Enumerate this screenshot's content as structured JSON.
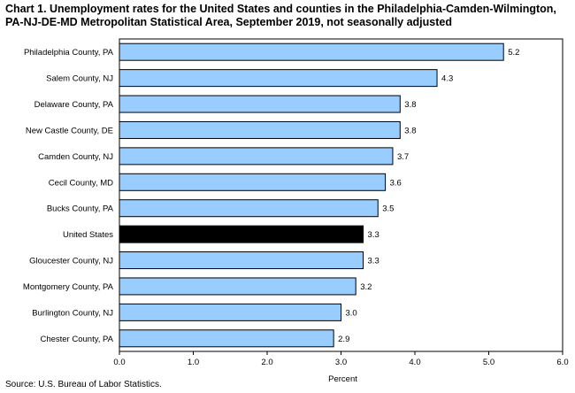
{
  "chart_data": {
    "type": "bar",
    "orientation": "horizontal",
    "title": "Chart 1. Unemployment rates for the United States and counties in the Philadelphia-Camden-Wilmington, PA-NJ-DE-MD Metropolitan Statistical Area, September 2019, not seasonally adjusted",
    "xlabel": "Percent",
    "ylabel": "",
    "xlim": [
      0,
      6
    ],
    "x_ticks": [
      "0.0",
      "1.0",
      "2.0",
      "3.0",
      "4.0",
      "5.0",
      "6.0"
    ],
    "categories": [
      "Philadelphia County, PA",
      "Salem County, NJ",
      "Delaware County, PA",
      "New Castle County, DE",
      "Camden County, NJ",
      "Cecil County, MD",
      "Bucks County, PA",
      "United States",
      "Gloucester County, NJ",
      "Montgomery County, PA",
      "Burlington County, NJ",
      "Chester County, PA"
    ],
    "values": [
      5.2,
      4.3,
      3.8,
      3.8,
      3.7,
      3.6,
      3.5,
      3.3,
      3.3,
      3.2,
      3.0,
      2.9
    ],
    "value_labels": [
      "5.2",
      "4.3",
      "3.8",
      "3.8",
      "3.7",
      "3.6",
      "3.5",
      "3.3",
      "3.3",
      "3.2",
      "3.0",
      "2.9"
    ],
    "highlight_category": "United States",
    "colors": {
      "bar": "#99ccff",
      "highlight": "#000000",
      "outline": "#000000"
    },
    "grid": false,
    "legend": "none",
    "source": "Source: U.S. Bureau of Labor Statistics."
  }
}
